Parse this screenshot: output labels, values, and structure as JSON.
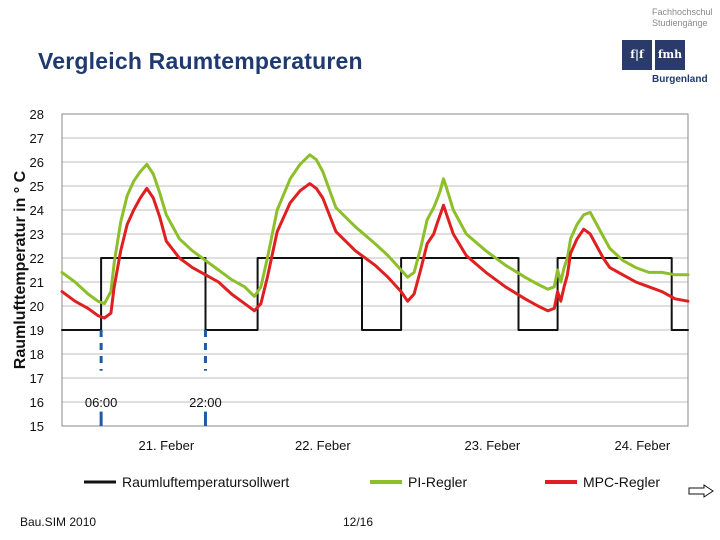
{
  "slide": {
    "title": "Vergleich Raumtemperaturen",
    "footer_left": "Bau.SIM 2010",
    "page_number": "12/16"
  },
  "logo": {
    "line1": "Fachhochschul",
    "line2": "Studiengänge",
    "mark_left": "f|f",
    "mark_right": "fmh",
    "place": "Burgenland"
  },
  "icons": {
    "next": "arrow-right-icon"
  },
  "chart_data": {
    "type": "line",
    "ylabel": "Raumlufttemperatur in ° C",
    "ylim": [
      15,
      28
    ],
    "yticks": [
      15,
      16,
      17,
      18,
      19,
      20,
      21,
      22,
      23,
      24,
      25,
      26,
      27,
      28
    ],
    "x_unit": "hours since 20. Feber 00:00",
    "xlim": [
      12,
      108
    ],
    "categories": [
      "21. Feber",
      "22. Feber",
      "23. Feber",
      "24. Feber"
    ],
    "category_x": [
      28,
      52,
      78,
      101
    ],
    "annotations": [
      {
        "label": "06:00",
        "x": 18
      },
      {
        "label": "22:00",
        "x": 34
      }
    ],
    "colors": {
      "setpoint": "#111111",
      "pi": "#8dbf2a",
      "mpc": "#e02020",
      "grid": "#bfbfbf"
    },
    "series": [
      {
        "name": "Raumluftemperatursollwert",
        "x": [
          12,
          18,
          18,
          34,
          34,
          42,
          42,
          58,
          58,
          64,
          64,
          82,
          82,
          88,
          88,
          105.5,
          105.5,
          108
        ],
        "y": [
          19,
          19,
          22,
          22,
          19,
          19,
          22,
          22,
          19,
          19,
          22,
          22,
          19,
          19,
          22,
          22,
          19,
          19
        ]
      },
      {
        "name": "PI-Regler",
        "x": [
          12,
          14,
          16,
          17.5,
          18.5,
          19.5,
          20,
          21,
          22,
          23,
          24,
          25,
          26,
          27,
          28,
          30,
          32,
          34,
          36,
          38,
          40,
          41.5,
          42.5,
          43.5,
          45,
          47,
          48.5,
          50,
          51,
          52,
          54,
          57,
          60,
          62,
          64,
          65,
          66,
          67,
          68,
          69,
          69.6,
          70,
          70.5,
          71,
          72,
          74,
          77,
          80,
          83,
          85,
          86.5,
          87.5,
          88,
          88.5,
          89,
          89.5,
          90,
          91,
          92,
          93,
          94,
          95,
          96,
          98,
          100,
          102,
          104,
          106,
          108
        ],
        "y": [
          21.4,
          21,
          20.5,
          20.2,
          20.1,
          20.6,
          21.8,
          23.5,
          24.6,
          25.2,
          25.6,
          25.9,
          25.5,
          24.7,
          23.8,
          22.8,
          22.3,
          21.9,
          21.5,
          21.1,
          20.8,
          20.4,
          20.8,
          22.0,
          24.0,
          25.3,
          25.9,
          26.3,
          26.1,
          25.6,
          24.1,
          23.3,
          22.6,
          22.1,
          21.5,
          21.2,
          21.4,
          22.4,
          23.6,
          24.1,
          24.5,
          24.8,
          25.3,
          24.9,
          24.0,
          23.0,
          22.3,
          21.7,
          21.2,
          20.9,
          20.7,
          20.8,
          21.5,
          21.0,
          21.6,
          22.0,
          22.8,
          23.4,
          23.8,
          23.9,
          23.4,
          22.9,
          22.4,
          21.9,
          21.6,
          21.4,
          21.4,
          21.3,
          21.3
        ]
      },
      {
        "name": "MPC-Regler",
        "x": [
          12,
          14,
          16,
          17.5,
          18.5,
          19.5,
          20,
          21,
          22,
          23,
          24,
          25,
          26,
          27,
          28,
          30,
          32,
          34,
          36,
          38,
          40,
          41.5,
          42.5,
          43.5,
          45,
          47,
          48.5,
          50,
          51,
          52,
          54,
          57,
          60,
          62,
          64,
          65,
          66,
          67,
          68,
          69,
          69.6,
          70,
          70.5,
          71,
          72,
          74,
          77,
          80,
          83,
          85,
          86.5,
          87.5,
          88,
          88.5,
          89,
          89.5,
          90,
          91,
          92,
          93,
          94,
          95,
          96,
          98,
          100,
          102,
          104,
          106,
          108
        ],
        "y": [
          20.6,
          20.2,
          19.9,
          19.6,
          19.5,
          19.7,
          20.8,
          22.3,
          23.4,
          24.0,
          24.5,
          24.9,
          24.5,
          23.7,
          22.7,
          22.0,
          21.6,
          21.3,
          21.0,
          20.5,
          20.1,
          19.8,
          20.1,
          21.2,
          23.1,
          24.3,
          24.8,
          25.1,
          24.9,
          24.5,
          23.1,
          22.3,
          21.7,
          21.2,
          20.6,
          20.2,
          20.5,
          21.5,
          22.6,
          23.0,
          23.5,
          23.8,
          24.2,
          23.8,
          23.0,
          22.1,
          21.4,
          20.8,
          20.3,
          20.0,
          19.8,
          19.9,
          20.6,
          20.2,
          20.8,
          21.3,
          22.2,
          22.8,
          23.2,
          23.0,
          22.5,
          22.0,
          21.6,
          21.3,
          21.0,
          20.8,
          20.6,
          20.3,
          20.2
        ]
      }
    ]
  }
}
